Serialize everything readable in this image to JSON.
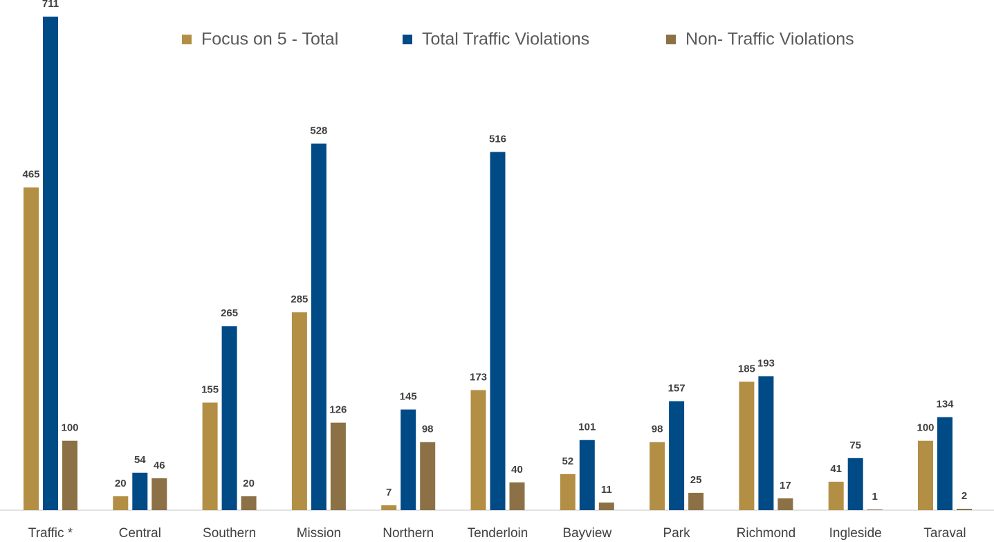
{
  "chart_data": {
    "type": "bar",
    "categories": [
      "Traffic *",
      "Central",
      "Southern",
      "Mission",
      "Northern",
      "Tenderloin",
      "Bayview",
      "Park",
      "Richmond",
      "Ingleside",
      "Taraval"
    ],
    "series": [
      {
        "name": "Focus on 5 - Total",
        "color": "#b38f45",
        "values": [
          465,
          20,
          155,
          285,
          7,
          173,
          52,
          98,
          185,
          41,
          100
        ]
      },
      {
        "name": "Total Traffic Violations",
        "color": "#004a86",
        "values": [
          711,
          54,
          265,
          528,
          145,
          516,
          101,
          157,
          193,
          75,
          134
        ]
      },
      {
        "name": "Non- Traffic Violations",
        "color": "#8b7145",
        "values": [
          100,
          46,
          20,
          126,
          98,
          40,
          11,
          25,
          17,
          1,
          2
        ]
      }
    ],
    "legend": "top"
  }
}
